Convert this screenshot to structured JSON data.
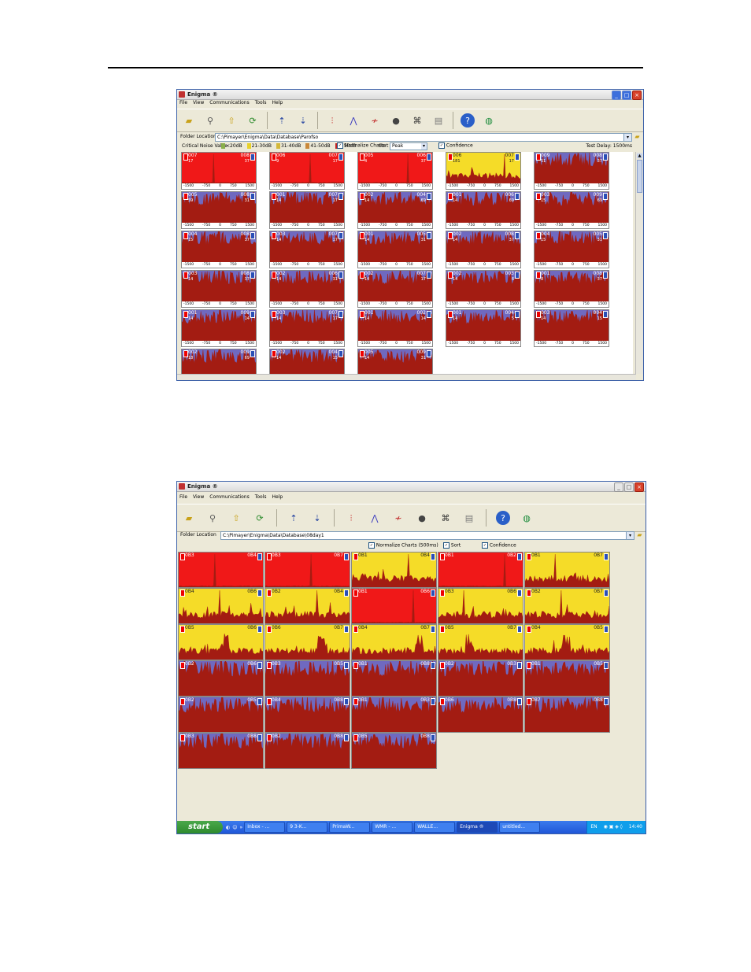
{
  "colors": {
    "red": "#f01818",
    "yellow": "#f5dc28",
    "blue": "#6f69c0",
    "trace": "#a31c12"
  },
  "window_top": {
    "title": "Enigma ®",
    "menu": [
      "File",
      "View",
      "Communications",
      "Tools",
      "Help"
    ],
    "folder_label": "Folder Location",
    "folder_path": "C:\\Pimayer\\Enigma\\Data\\Database\\Parofso",
    "critical_label": "Critical Noise Value",
    "legend": [
      "<20dB",
      "21-30dB",
      "31-40dB",
      "41-50dB",
      ">50dB"
    ],
    "normalize_label": "Normalize Charts",
    "sort_label": "Sort",
    "sort_value": "Peak",
    "confidence_label": "Confidence",
    "test_delay": "Test Delay: 1500ms",
    "axis_ticks": [
      "-1500",
      "-750",
      "0",
      "750",
      "1500"
    ],
    "panels": [
      {
        "c": "red",
        "l": "007",
        "r": "008",
        "sl": "17",
        "sr": "37",
        "spike": true
      },
      {
        "c": "red",
        "l": "006",
        "r": "007",
        "sl": "9",
        "sr": "17",
        "spike": true
      },
      {
        "c": "red",
        "l": "005",
        "r": "006",
        "sl": "4",
        "sr": "37",
        "spike": true
      },
      {
        "c": "yellow",
        "l": "006",
        "r": "007",
        "sl": "181",
        "sr": "17",
        "spike": true
      },
      {
        "c": "blue",
        "l": "009",
        "r": "008",
        "sl": "51",
        "sr": "37",
        "spike": true
      },
      {
        "c": "blue",
        "l": "005",
        "r": "008",
        "sl": "59",
        "sr": "31",
        "spike": false
      },
      {
        "c": "blue",
        "l": "001",
        "r": "007",
        "sl": "14",
        "sr": "17",
        "spike": false
      },
      {
        "c": "blue",
        "l": "002",
        "r": "004",
        "sl": "14",
        "sr": "69",
        "spike": false
      },
      {
        "c": "blue",
        "l": "001",
        "r": "006",
        "sl": "14",
        "sr": "69",
        "spike": false
      },
      {
        "c": "blue",
        "l": "003",
        "r": "009",
        "sl": "15",
        "sr": "69",
        "spike": false
      },
      {
        "c": "blue",
        "l": "004",
        "r": "008",
        "sl": "15",
        "sr": "37",
        "spike": false
      },
      {
        "c": "blue",
        "l": "003",
        "r": "007",
        "sl": "14",
        "sr": "17",
        "spike": false
      },
      {
        "c": "blue",
        "l": "001",
        "r": "005",
        "sl": "14",
        "sr": "31",
        "spike": false
      },
      {
        "c": "blue",
        "l": "002",
        "r": "008",
        "sl": "14",
        "sr": "37",
        "spike": false
      },
      {
        "c": "blue",
        "l": "004",
        "r": "005",
        "sl": "15",
        "sr": "31",
        "spike": false
      },
      {
        "c": "blue",
        "l": "003",
        "r": "008",
        "sl": "14",
        "sr": "37",
        "spike": false
      },
      {
        "c": "blue",
        "l": "002",
        "r": "006",
        "sl": "14",
        "sr": "31",
        "spike": false
      },
      {
        "c": "blue",
        "l": "002",
        "r": "007",
        "sl": "14",
        "sr": "17",
        "spike": false
      },
      {
        "c": "blue",
        "l": "002",
        "r": "003",
        "sl": "14",
        "sr": "6",
        "spike": false
      },
      {
        "c": "blue",
        "l": "001",
        "r": "008",
        "sl": "8",
        "sr": "37",
        "spike": false
      },
      {
        "c": "blue",
        "l": "001",
        "r": "009",
        "sl": "14",
        "sr": "14",
        "spike": false
      },
      {
        "c": "blue",
        "l": "003",
        "r": "007",
        "sl": "14",
        "sr": "17",
        "spike": false
      },
      {
        "c": "blue",
        "l": "001",
        "r": "002",
        "sl": "14",
        "sr": "14",
        "spike": false
      },
      {
        "c": "blue",
        "l": "001",
        "r": "004",
        "sl": "14",
        "sr": "5",
        "spike": false
      },
      {
        "c": "blue",
        "l": "003",
        "r": "004",
        "sl": "14",
        "sr": "15",
        "spike": false
      },
      {
        "c": "blue",
        "l": "002",
        "r": "009",
        "sl": "18",
        "sr": "69",
        "spike": false
      },
      {
        "c": "blue",
        "l": "002",
        "r": "004",
        "sl": "14",
        "sr": "15",
        "spike": false
      },
      {
        "c": "blue",
        "l": "005",
        "r": "009",
        "sl": "14",
        "sr": "31",
        "spike": false
      }
    ]
  },
  "window_bottom": {
    "title": "Enigma ®",
    "menu": [
      "File",
      "View",
      "Communications",
      "Tools",
      "Help"
    ],
    "folder_label": "Folder Location",
    "folder_path": "C:\\Pimayer\\Enigma\\Data\\Database\\08day1",
    "normalize_label": "Normalize Charts (500ms)",
    "sort_label": "Sort",
    "confidence_label": "Confidence",
    "panels": [
      {
        "c": "red",
        "l": "0B3",
        "r": "0B4",
        "spike": true
      },
      {
        "c": "red",
        "l": "0B3",
        "r": "0B7",
        "spike": true
      },
      {
        "c": "yellow",
        "l": "0B1",
        "r": "0B4",
        "spike": true
      },
      {
        "c": "red",
        "l": "0B1",
        "r": "0B2",
        "spike": true
      },
      {
        "c": "yellow",
        "l": "0B1",
        "r": "0B7",
        "spike": true
      },
      {
        "c": "yellow",
        "l": "0B4",
        "r": "0B6",
        "spike": true
      },
      {
        "c": "yellow",
        "l": "0B2",
        "r": "0B4",
        "spike": true
      },
      {
        "c": "red",
        "l": "0B1",
        "r": "0B6",
        "spike": true
      },
      {
        "c": "yellow",
        "l": "0B3",
        "r": "0B6",
        "spike": true
      },
      {
        "c": "yellow",
        "l": "0B2",
        "r": "0B7",
        "spike": true
      },
      {
        "c": "yellow",
        "l": "0B5",
        "r": "0B6",
        "spike": false
      },
      {
        "c": "yellow",
        "l": "0B6",
        "r": "0B7",
        "spike": false
      },
      {
        "c": "yellow",
        "l": "0B4",
        "r": "0B7",
        "spike": false
      },
      {
        "c": "yellow",
        "l": "0B5",
        "r": "0B7",
        "spike": false
      },
      {
        "c": "yellow",
        "l": "0B4",
        "r": "0B5",
        "spike": false
      },
      {
        "c": "blue",
        "l": "0B2",
        "r": "0B6",
        "spike": false
      },
      {
        "c": "blue",
        "l": "0B3",
        "r": "0B5",
        "spike": false
      },
      {
        "c": "blue",
        "l": "0B1",
        "r": "0B8",
        "spike": false
      },
      {
        "c": "blue",
        "l": "0B2",
        "r": "0B3",
        "spike": false
      },
      {
        "c": "blue",
        "l": "0B1",
        "r": "0B5",
        "spike": false
      },
      {
        "c": "blue",
        "l": "0B2",
        "r": "0B5",
        "spike": false
      },
      {
        "c": "blue",
        "l": "0B4",
        "r": "0B8",
        "spike": false
      },
      {
        "c": "blue",
        "l": "0B1",
        "r": "0B3",
        "spike": false
      },
      {
        "c": "blue",
        "l": "0B6",
        "r": "0B8",
        "spike": false
      },
      {
        "c": "blue",
        "l": "0B7",
        "r": "0B8",
        "spike": false
      },
      {
        "c": "blue",
        "l": "0B3",
        "r": "0B8",
        "spike": false
      },
      {
        "c": "blue",
        "l": "0B2",
        "r": "0B8",
        "spike": false
      },
      {
        "c": "blue",
        "l": "0B5",
        "r": "0B8",
        "spike": false
      }
    ],
    "taskbar": {
      "start": "start",
      "tasks": [
        "Inbox - ...",
        "9 3-K...",
        "PrimaW...",
        "WMR - ...",
        "WALLE...",
        "Enigma ®",
        "untitled..."
      ],
      "active_task": 5,
      "tray_lang": "EN",
      "clock": "14:40"
    }
  }
}
